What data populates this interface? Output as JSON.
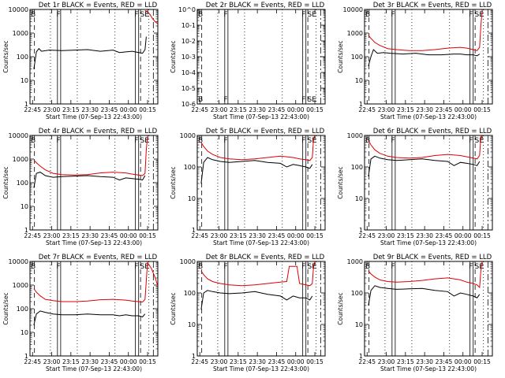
{
  "chart_data": [
    {
      "type": "line",
      "title": "Det 1r BLACK = Events, RED = LLD",
      "xlabel": "Start Time (07-Sep-13 22:43:00)",
      "ylabel": "Counts/sec",
      "x_ticks": [
        "22:45",
        "23:00",
        "23:15",
        "23:30",
        "23:45",
        "00:00",
        "00:15"
      ],
      "y_ticks": [
        "1",
        "10",
        "100",
        "1000",
        "10000"
      ],
      "ylim": [
        1,
        10000
      ],
      "xlim_minutes": [
        0,
        100
      ],
      "markers": [
        "B",
        "F",
        "F",
        "SE"
      ],
      "series": [
        {
          "name": "Events",
          "color": "#000000",
          "x": [
            3,
            5,
            7,
            9,
            15,
            25,
            35,
            45,
            55,
            65,
            70,
            75,
            80,
            85,
            88,
            90,
            91
          ],
          "y": [
            30,
            160,
            220,
            170,
            190,
            180,
            190,
            200,
            170,
            190,
            150,
            160,
            170,
            150,
            140,
            200,
            700
          ]
        },
        {
          "name": "LLD",
          "color": "#dd0000",
          "x": [
            90,
            92,
            94,
            96,
            98,
            100
          ],
          "y": [
            9000,
            8000,
            6000,
            4000,
            3000,
            2500
          ]
        }
      ]
    },
    {
      "type": "line",
      "title": "Det 2r BLACK = Events, RED = LLD",
      "xlabel": "Start Time (07-Sep-13 22:43:00)",
      "ylabel": "Counts/sec",
      "x_ticks": [
        "22:45",
        "23:00",
        "23:15",
        "23:30",
        "23:45",
        "00:00",
        "00:15"
      ],
      "y_ticks": [
        "10-6",
        "10-5",
        "10-4",
        "10-3",
        "10-2",
        "10-1",
        "10^0"
      ],
      "ylim": [
        1e-06,
        1
      ],
      "xlim_minutes": [
        0,
        100
      ],
      "markers": [
        "B",
        "F",
        "F",
        "SE"
      ],
      "series": []
    },
    {
      "type": "line",
      "title": "Det 3r BLACK = Events, RED = LLD",
      "xlabel": "Start Time (07-Sep-13 22:43:00)",
      "ylabel": "Counts/sec",
      "x_ticks": [
        "22:45",
        "23:00",
        "23:15",
        "23:30",
        "23:45",
        "00:00",
        "00:15"
      ],
      "y_ticks": [
        "1",
        "10",
        "100",
        "1000",
        "10000"
      ],
      "ylim": [
        1,
        10000
      ],
      "xlim_minutes": [
        0,
        100
      ],
      "markers": [
        "B",
        "F",
        "F",
        "SE"
      ],
      "series": [
        {
          "name": "Events",
          "color": "#000000",
          "x": [
            3,
            5,
            7,
            10,
            15,
            20,
            30,
            40,
            50,
            60,
            70,
            75,
            80,
            85,
            88,
            90
          ],
          "y": [
            40,
            100,
            200,
            140,
            150,
            140,
            130,
            140,
            120,
            120,
            130,
            130,
            120,
            120,
            110,
            130
          ]
        },
        {
          "name": "LLD",
          "color": "#dd0000",
          "x": [
            3,
            5,
            8,
            12,
            18,
            25,
            35,
            45,
            55,
            65,
            75,
            80,
            85,
            88,
            90,
            91,
            92
          ],
          "y": [
            800,
            600,
            400,
            300,
            220,
            200,
            180,
            180,
            200,
            230,
            250,
            230,
            200,
            180,
            250,
            2000,
            9000
          ]
        }
      ]
    },
    {
      "type": "line",
      "title": "Det 4r BLACK = Events, RED = LLD",
      "xlabel": "Start Time (07-Sep-13 22:43:00)",
      "ylabel": "Counts/sec",
      "x_ticks": [
        "22:45",
        "23:00",
        "23:15",
        "23:30",
        "23:45",
        "00:00",
        "00:15"
      ],
      "y_ticks": [
        "1",
        "10",
        "100",
        "1000",
        "10000"
      ],
      "ylim": [
        1,
        10000
      ],
      "xlim_minutes": [
        0,
        100
      ],
      "markers": [
        "B",
        "F",
        "F",
        "SE"
      ],
      "series": [
        {
          "name": "Events",
          "color": "#000000",
          "x": [
            3,
            5,
            8,
            12,
            18,
            25,
            35,
            45,
            55,
            65,
            70,
            75,
            80,
            85,
            88,
            90
          ],
          "y": [
            60,
            250,
            280,
            200,
            170,
            180,
            190,
            200,
            180,
            170,
            130,
            160,
            150,
            140,
            130,
            200
          ]
        },
        {
          "name": "LLD",
          "color": "#dd0000",
          "x": [
            3,
            5,
            8,
            12,
            18,
            25,
            35,
            45,
            55,
            65,
            75,
            80,
            85,
            88,
            90,
            91,
            92
          ],
          "y": [
            900,
            700,
            500,
            350,
            250,
            220,
            210,
            220,
            260,
            280,
            260,
            230,
            210,
            200,
            250,
            2500,
            9000
          ]
        }
      ]
    },
    {
      "type": "line",
      "title": "Det 5r BLACK = Events, RED = LLD",
      "xlabel": "Start Time (07-Sep-13 22:43:00)",
      "ylabel": "Counts/sec",
      "x_ticks": [
        "22:45",
        "23:00",
        "23:15",
        "23:30",
        "23:45",
        "00:00",
        "00:15"
      ],
      "y_ticks": [
        "1",
        "10",
        "100",
        "1000"
      ],
      "ylim": [
        1,
        1000
      ],
      "xlim_minutes": [
        0,
        100
      ],
      "markers": [
        "B",
        "F",
        "F",
        "SE"
      ],
      "series": [
        {
          "name": "Events",
          "color": "#000000",
          "x": [
            3,
            5,
            8,
            12,
            18,
            25,
            35,
            45,
            55,
            65,
            70,
            75,
            80,
            85,
            88,
            90
          ],
          "y": [
            30,
            140,
            200,
            170,
            150,
            140,
            150,
            160,
            140,
            130,
            100,
            120,
            110,
            100,
            90,
            120
          ]
        },
        {
          "name": "LLD",
          "color": "#dd0000",
          "x": [
            3,
            5,
            8,
            12,
            18,
            25,
            35,
            45,
            55,
            65,
            75,
            80,
            85,
            88,
            90,
            91,
            92
          ],
          "y": [
            600,
            450,
            320,
            250,
            200,
            180,
            170,
            180,
            200,
            220,
            200,
            180,
            170,
            160,
            200,
            800,
            1000
          ]
        }
      ]
    },
    {
      "type": "line",
      "title": "Det 6r BLACK = Events, RED = LLD",
      "xlabel": "Start Time (07-Sep-13 22:43:00)",
      "ylabel": "Counts/sec",
      "x_ticks": [
        "22:45",
        "23:00",
        "23:15",
        "23:30",
        "23:45",
        "00:00",
        "00:15"
      ],
      "y_ticks": [
        "1",
        "10",
        "100",
        "1000"
      ],
      "ylim": [
        1,
        1000
      ],
      "xlim_minutes": [
        0,
        100
      ],
      "markers": [
        "B",
        "F",
        "F",
        "SE"
      ],
      "series": [
        {
          "name": "Events",
          "color": "#000000",
          "x": [
            3,
            5,
            8,
            12,
            18,
            25,
            35,
            45,
            55,
            65,
            70,
            75,
            80,
            85,
            88,
            90
          ],
          "y": [
            50,
            180,
            220,
            190,
            170,
            160,
            170,
            180,
            160,
            150,
            110,
            140,
            130,
            120,
            110,
            150
          ]
        },
        {
          "name": "LLD",
          "color": "#dd0000",
          "x": [
            3,
            5,
            8,
            12,
            18,
            25,
            35,
            45,
            55,
            65,
            75,
            80,
            85,
            88,
            90,
            91,
            92
          ],
          "y": [
            700,
            500,
            350,
            270,
            220,
            200,
            190,
            200,
            230,
            250,
            230,
            210,
            190,
            180,
            230,
            900,
            1000
          ]
        }
      ]
    },
    {
      "type": "line",
      "title": "Det 7r BLACK = Events, RED = LLD",
      "xlabel": "Start Time (07-Sep-13 22:43:00)",
      "ylabel": "Counts/sec",
      "x_ticks": [
        "22:45",
        "23:00",
        "23:15",
        "23:30",
        "23:45",
        "00:00",
        "00:15"
      ],
      "y_ticks": [
        "1",
        "10",
        "100",
        "1000",
        "10000"
      ],
      "ylim": [
        1,
        10000
      ],
      "xlim_minutes": [
        0,
        100
      ],
      "markers": [
        "B",
        "F",
        "F",
        "SE"
      ],
      "series": [
        {
          "name": "Events",
          "color": "#000000",
          "x": [
            3,
            5,
            8,
            12,
            18,
            25,
            35,
            45,
            55,
            65,
            70,
            75,
            80,
            85,
            88,
            90
          ],
          "y": [
            20,
            60,
            80,
            70,
            60,
            55,
            55,
            60,
            55,
            55,
            50,
            55,
            50,
            50,
            45,
            60
          ]
        },
        {
          "name": "LLD",
          "color": "#dd0000",
          "x": [
            3,
            5,
            8,
            12,
            18,
            25,
            35,
            45,
            55,
            65,
            75,
            80,
            85,
            88,
            90,
            92,
            95,
            98,
            100
          ],
          "y": [
            700,
            500,
            350,
            250,
            220,
            200,
            200,
            210,
            240,
            250,
            230,
            210,
            200,
            190,
            250,
            9000,
            5000,
            2000,
            900
          ]
        }
      ]
    },
    {
      "type": "line",
      "title": "Det 8r BLACK = Events, RED = LLD",
      "xlabel": "Start Time (07-Sep-13 22:43:00)",
      "ylabel": "Counts/sec",
      "x_ticks": [
        "22:45",
        "23:00",
        "23:15",
        "23:30",
        "23:45",
        "00:00",
        "00:15"
      ],
      "y_ticks": [
        "1",
        "10",
        "100",
        "1000"
      ],
      "ylim": [
        1,
        1000
      ],
      "xlim_minutes": [
        0,
        100
      ],
      "markers": [
        "B",
        "F",
        "F",
        "SE"
      ],
      "series": [
        {
          "name": "Events",
          "color": "#000000",
          "x": [
            3,
            5,
            8,
            12,
            18,
            25,
            35,
            45,
            55,
            65,
            70,
            75,
            80,
            85,
            88,
            90
          ],
          "y": [
            30,
            100,
            120,
            110,
            100,
            95,
            100,
            110,
            90,
            80,
            60,
            80,
            70,
            70,
            60,
            80
          ]
        },
        {
          "name": "LLD",
          "color": "#dd0000",
          "x": [
            3,
            5,
            8,
            12,
            18,
            25,
            35,
            45,
            55,
            65,
            70,
            72,
            78,
            80,
            85,
            88,
            90,
            91,
            92
          ],
          "y": [
            500,
            380,
            280,
            230,
            200,
            180,
            170,
            180,
            200,
            220,
            230,
            700,
            700,
            200,
            180,
            170,
            200,
            700,
            1000
          ]
        }
      ]
    },
    {
      "type": "line",
      "title": "Det 9r BLACK = Events, RED = LLD",
      "xlabel": "Start Time (07-Sep-13 22:43:00)",
      "ylabel": "Counts/sec",
      "x_ticks": [
        "22:45",
        "23:00",
        "23:15",
        "23:30",
        "23:45",
        "00:00",
        "00:15"
      ],
      "y_ticks": [
        "1",
        "10",
        "100",
        "1000"
      ],
      "ylim": [
        1,
        1000
      ],
      "xlim_minutes": [
        0,
        100
      ],
      "markers": [
        "B",
        "F",
        "F",
        "SE"
      ],
      "series": [
        {
          "name": "Events",
          "color": "#000000",
          "x": [
            3,
            5,
            8,
            12,
            18,
            25,
            35,
            45,
            55,
            65,
            70,
            75,
            80,
            85,
            88,
            90
          ],
          "y": [
            40,
            120,
            170,
            150,
            140,
            130,
            135,
            140,
            120,
            110,
            80,
            100,
            90,
            80,
            70,
            90
          ]
        },
        {
          "name": "LLD",
          "color": "#dd0000",
          "x": [
            3,
            5,
            8,
            12,
            18,
            25,
            35,
            45,
            55,
            65,
            75,
            80,
            85,
            88,
            90,
            91,
            92
          ],
          "y": [
            500,
            400,
            320,
            260,
            230,
            220,
            230,
            250,
            280,
            300,
            260,
            220,
            200,
            180,
            150,
            500,
            1000
          ]
        }
      ]
    }
  ]
}
